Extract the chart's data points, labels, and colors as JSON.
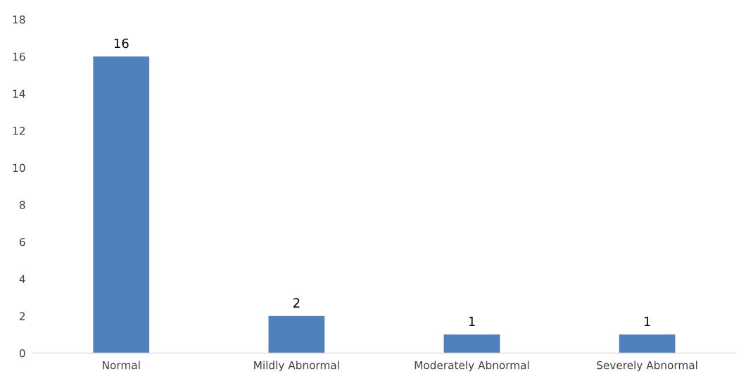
{
  "chart_data": {
    "type": "bar",
    "categories": [
      "Normal",
      "Mildly Abnormal",
      "Moderately Abnormal",
      "Severely Abnormal"
    ],
    "values": [
      16,
      2,
      1,
      1
    ],
    "color": "#4f81bd",
    "ylim": [
      0,
      18
    ],
    "yticks": [
      0,
      2,
      4,
      6,
      8,
      10,
      12,
      14,
      16,
      18
    ],
    "data_labels": true,
    "grid": false
  }
}
